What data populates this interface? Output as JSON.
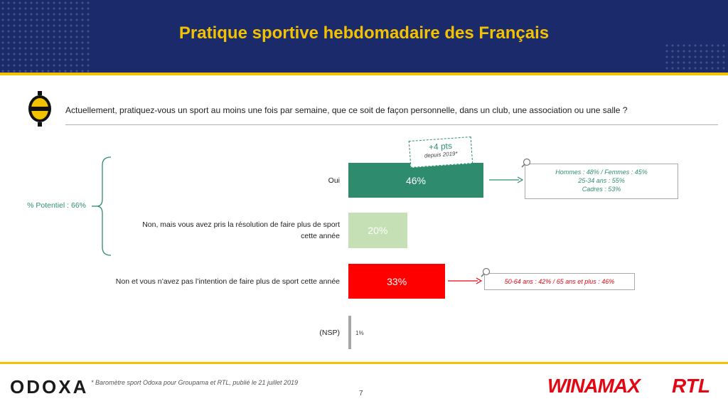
{
  "header": {
    "title": "Pratique sportive hebdomadaire des Français"
  },
  "question": "Actuellement, pratiquez-vous un sport au moins une fois par semaine, que ce soit de façon personnelle, dans un club, une association ou une salle ?",
  "potentiel_label": "% Potentiel : 66%",
  "change_badge": {
    "main": "+4 pts",
    "sub": "depuis 2019*"
  },
  "notes": {
    "oui": [
      "Hommes : 48% / Femmes : 45%",
      "25-34 ans : 55%",
      "Cadres : 53%"
    ],
    "non": "50-64 ans : 42% / 65 ans et plus : 46%"
  },
  "chart_data": {
    "type": "bar",
    "orientation": "horizontal",
    "categories": [
      "Oui",
      "Non, mais vous avez pris la résolution de faire plus de sport cette année",
      "Non et vous n’avez pas l’intention de faire plus de sport cette année",
      "(NSP)"
    ],
    "category_lines": [
      [
        "Oui"
      ],
      [
        "Non, mais vous avez pris la résolution de faire plus de sport",
        "cette année"
      ],
      [
        "Non et vous n’avez pas l’intention de faire plus de sport cette année"
      ],
      [
        "(NSP)"
      ]
    ],
    "values": [
      46,
      20,
      33,
      1
    ],
    "value_labels": [
      "46%",
      "20%",
      "33%",
      "1%"
    ],
    "colors": [
      "#2e8b6e",
      "#c5e0b4",
      "#ff0000",
      "#a6a6a6"
    ],
    "xlim": [
      0,
      100
    ],
    "grid": false,
    "legend": "none"
  },
  "colors": {
    "navy": "#1b2a6b",
    "yellow": "#f2c200",
    "green": "#2e8b6e",
    "red": "#e30613"
  },
  "footer": {
    "brand": "ODOXA",
    "source": "* Baromètre sport Odoxa pour Groupama et RTL, publié le 21 juillet 2019",
    "page": "7",
    "partner1": "WINAMAX",
    "partner2": "RTL"
  }
}
